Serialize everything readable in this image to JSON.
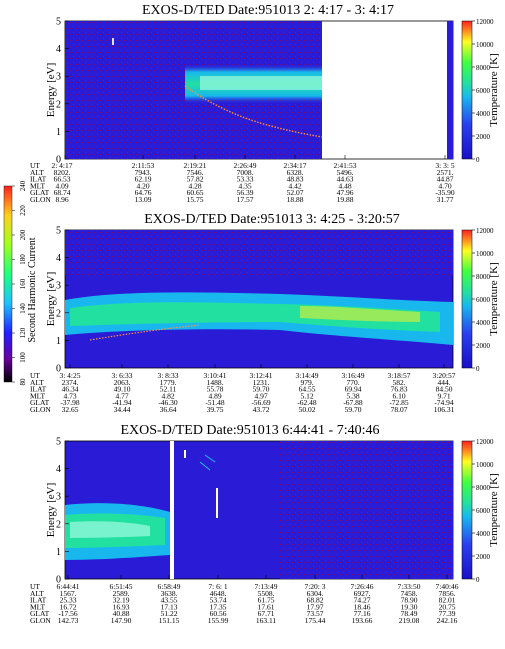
{
  "chart_data": [
    {
      "type": "heatmap",
      "title": "EXOS-D/TED  Date:951013  2: 4:17 - 3: 4:17",
      "ylabel": "Energy [eV]",
      "ylim": [
        0,
        5
      ],
      "y_ticks": [
        "0",
        "1",
        "2",
        "3",
        "4",
        "5"
      ],
      "colorbar_label": "Temperature [K]",
      "colorbar_ticks": [
        "0",
        "2000",
        "4000",
        "6000",
        "8000",
        "10000",
        "12000"
      ],
      "colorbar_range": [
        0,
        12000
      ],
      "table": {
        "row_labels": [
          "UT",
          "ALT",
          "ILAT",
          "MLT",
          "GLAT",
          "GLON"
        ],
        "columns": [
          [
            "2: 4:17",
            "8202.",
            "66.53",
            "4.09",
            "68.74",
            "8.96"
          ],
          [
            "2:11:53",
            "7943.",
            "62.19",
            "4.20",
            "64.76",
            "13.09"
          ],
          [
            "2:19:21",
            "7546.",
            "57.82",
            "4.28",
            "60.65",
            "15.75"
          ],
          [
            "2:26:49",
            "7008.",
            "53.33",
            "4.35",
            "56.39",
            "17.57"
          ],
          [
            "2:34:17",
            "6328.",
            "48.83",
            "4.42",
            "52.07",
            "18.88"
          ],
          [
            "2:41:53",
            "5496.",
            "44.63",
            "4.48",
            "47.96",
            "19.88"
          ],
          [
            "3: 3: 5",
            "2571.",
            "44.87",
            "4.70",
            "-35.90",
            "31.77"
          ]
        ]
      }
    },
    {
      "type": "heatmap",
      "title": "EXOS-D/TED  Date:951013  3: 4:25 - 3:20:57",
      "ylabel": "Energy [eV]",
      "ylim": [
        0,
        5
      ],
      "y_ticks": [
        "0",
        "1",
        "2",
        "3",
        "4",
        "5"
      ],
      "colorbar_label": "Temperature [K]",
      "colorbar_ticks": [
        "0",
        "2000",
        "4000",
        "6000",
        "8000",
        "10000",
        "12000"
      ],
      "colorbar_range": [
        0,
        12000
      ],
      "side_colorbar": {
        "label": "Second Harmonic Current",
        "ticks": [
          "80",
          "100",
          "120",
          "140",
          "160",
          "180",
          "200",
          "220",
          "240"
        ],
        "range": [
          80,
          240
        ]
      },
      "table": {
        "row_labels": [
          "UT",
          "ALT",
          "ILAT",
          "MLT",
          "GLAT",
          "GLON"
        ],
        "columns": [
          [
            "3: 4:25",
            "2374.",
            "46.34",
            "4.73",
            "-37.98",
            "32.65"
          ],
          [
            "3: 6:33",
            "2063.",
            "49.10",
            "4.77",
            "-41.94",
            "34.44"
          ],
          [
            "3: 8:33",
            "1779.",
            "52.11",
            "4.82",
            "-46.30",
            "36.64"
          ],
          [
            "3:10:41",
            "1488.",
            "55.78",
            "4.89",
            "-51.48",
            "39.75"
          ],
          [
            "3:12:41",
            "1231.",
            "59.70",
            "4.97",
            "-56.69",
            "43.72"
          ],
          [
            "3:14:49",
            "979.",
            "64.55",
            "5.12",
            "-62.48",
            "50.02"
          ],
          [
            "3:16:49",
            "770.",
            "69.94",
            "5.38",
            "-67.88",
            "59.70"
          ],
          [
            "3:18:57",
            "582.",
            "76.83",
            "6.10",
            "-72.85",
            "78.07"
          ],
          [
            "3:20:57",
            "444.",
            "84.50",
            "9.71",
            "-74.94",
            "106.31"
          ]
        ]
      }
    },
    {
      "type": "heatmap",
      "title": "EXOS-D/TED  Date:951013  6:44:41 - 7:40:46",
      "ylabel": "Energy [eV]",
      "ylim": [
        0,
        5
      ],
      "y_ticks": [
        "0",
        "1",
        "2",
        "3",
        "4",
        "5"
      ],
      "colorbar_label": "Temperature [K]",
      "colorbar_ticks": [
        "0",
        "2000",
        "4000",
        "6000",
        "8000",
        "10000",
        "12000"
      ],
      "colorbar_range": [
        0,
        12000
      ],
      "table": {
        "row_labels": [
          "UT",
          "ALT",
          "ILAT",
          "MLT",
          "GLAT",
          "GLON"
        ],
        "columns": [
          [
            "6:44:41",
            "1567.",
            "25.33",
            "16.72",
            "-17.56",
            "142.73"
          ],
          [
            "6:51:45",
            "2589.",
            "32.19",
            "16.93",
            "40.88",
            "147.90"
          ],
          [
            "6:58:49",
            "3638.",
            "43.55",
            "17.13",
            "51.22",
            "151.15"
          ],
          [
            "7: 6: 1",
            "4648.",
            "53.74",
            "17.35",
            "60.56",
            "155.99"
          ],
          [
            "7:13:49",
            "5508.",
            "61.75",
            "17.61",
            "67.71",
            "163.11"
          ],
          [
            "7:20: 3",
            "6304.",
            "68.82",
            "17.97",
            "73.57",
            "175.44"
          ],
          [
            "7:26:46",
            "6927.",
            "74.27",
            "18.46",
            "77.16",
            "193.66"
          ],
          [
            "7:33:50",
            "7458.",
            "78.90",
            "19.30",
            "78.49",
            "219.08"
          ],
          [
            "7:40:46",
            "7856.",
            "82.01",
            "20.75",
            "77.39",
            "242.16"
          ]
        ]
      }
    }
  ],
  "colors": {
    "background_blue": "#2a1bd6",
    "band_green": "#22e0a0",
    "band_cyan": "#18b8ee",
    "band_light": "#9dfbe0",
    "trace_orange": "#ff9040"
  }
}
